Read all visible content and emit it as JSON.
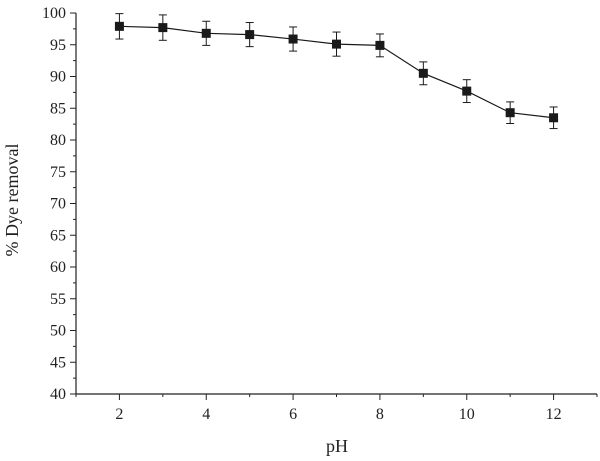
{
  "chart_data": {
    "type": "line",
    "xlabel": "pH",
    "ylabel": "% Dye removal",
    "xlim": [
      1,
      13
    ],
    "ylim": [
      40,
      100
    ],
    "x_ticks": [
      2,
      4,
      6,
      8,
      10,
      12
    ],
    "y_ticks": [
      40,
      45,
      50,
      55,
      60,
      65,
      70,
      75,
      80,
      85,
      90,
      95,
      100
    ],
    "grid": false,
    "marker": "square",
    "series": [
      {
        "x": [
          2,
          3,
          4,
          5,
          6,
          7,
          8,
          9,
          10,
          11,
          12
        ],
        "y": [
          97.9,
          97.7,
          96.8,
          96.6,
          95.9,
          95.1,
          94.9,
          90.5,
          87.7,
          84.3,
          83.5
        ],
        "err": [
          2.0,
          2.0,
          1.9,
          1.9,
          1.9,
          1.9,
          1.8,
          1.8,
          1.8,
          1.7,
          1.7
        ]
      }
    ],
    "colors": {
      "line": "#1a1a1a",
      "marker": "#1a1a1a",
      "axis": "#222222"
    }
  }
}
